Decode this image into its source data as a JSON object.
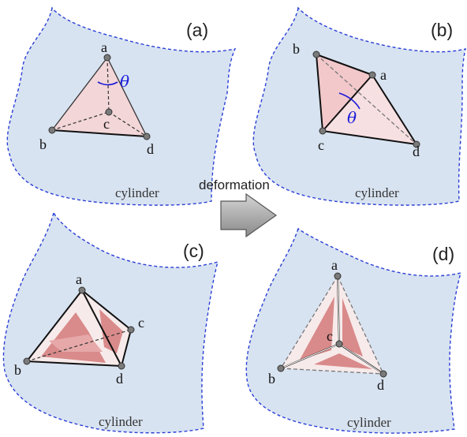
{
  "panels": {
    "a": {
      "label": "(a)",
      "cylinder": "cylinder",
      "vertices": [
        "a",
        "b",
        "c",
        "d"
      ],
      "angle": "θ"
    },
    "b": {
      "label": "(b)",
      "cylinder": "cylinder",
      "vertices": [
        "a",
        "b",
        "c",
        "d"
      ],
      "angle": "θ"
    },
    "c": {
      "label": "(c)",
      "cylinder": "cylinder",
      "vertices": [
        "a",
        "b",
        "c",
        "d"
      ]
    },
    "d": {
      "label": "(d)",
      "cylinder": "cylinder",
      "vertices": [
        "a",
        "b",
        "c",
        "d"
      ]
    }
  },
  "arrow": {
    "label": "deformation",
    "icon": "right-arrow-icon"
  },
  "colors": {
    "sheet_fill": "#d8e3f1",
    "sheet_border": "#2a3fd6",
    "face_light": "#f2d6d8",
    "face_dark": "#d98a8a",
    "theta": "#1a1ad8"
  }
}
